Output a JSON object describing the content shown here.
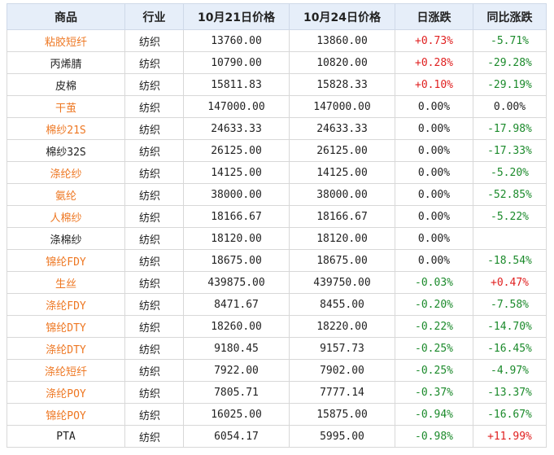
{
  "headers": [
    "商品",
    "行业",
    "10月21日价格",
    "10月24日价格",
    "日涨跌",
    "同比涨跌"
  ],
  "colors": {
    "link": "#ee7722",
    "up": "#e02020",
    "down": "#1b8a2b",
    "header_bg": "#e6eef9"
  },
  "rows": [
    {
      "name": "粘胶短纤",
      "link": true,
      "industry": "纺织",
      "p1": "13760.00",
      "p2": "13860.00",
      "day": "+0.73%",
      "day_dir": "up",
      "yoy": "-5.71%",
      "yoy_dir": "down"
    },
    {
      "name": "丙烯腈",
      "link": false,
      "industry": "纺织",
      "p1": "10790.00",
      "p2": "10820.00",
      "day": "+0.28%",
      "day_dir": "up",
      "yoy": "-29.28%",
      "yoy_dir": "down"
    },
    {
      "name": "皮棉",
      "link": false,
      "industry": "纺织",
      "p1": "15811.83",
      "p2": "15828.33",
      "day": "+0.10%",
      "day_dir": "up",
      "yoy": "-29.19%",
      "yoy_dir": "down"
    },
    {
      "name": "干茧",
      "link": true,
      "industry": "纺织",
      "p1": "147000.00",
      "p2": "147000.00",
      "day": "0.00%",
      "day_dir": "flat",
      "yoy": "0.00%",
      "yoy_dir": "flat"
    },
    {
      "name": "棉纱21S",
      "link": true,
      "industry": "纺织",
      "p1": "24633.33",
      "p2": "24633.33",
      "day": "0.00%",
      "day_dir": "flat",
      "yoy": "-17.98%",
      "yoy_dir": "down"
    },
    {
      "name": "棉纱32S",
      "link": false,
      "industry": "纺织",
      "p1": "26125.00",
      "p2": "26125.00",
      "day": "0.00%",
      "day_dir": "flat",
      "yoy": "-17.33%",
      "yoy_dir": "down"
    },
    {
      "name": "涤纶纱",
      "link": true,
      "industry": "纺织",
      "p1": "14125.00",
      "p2": "14125.00",
      "day": "0.00%",
      "day_dir": "flat",
      "yoy": "-5.20%",
      "yoy_dir": "down"
    },
    {
      "name": "氨纶",
      "link": true,
      "industry": "纺织",
      "p1": "38000.00",
      "p2": "38000.00",
      "day": "0.00%",
      "day_dir": "flat",
      "yoy": "-52.85%",
      "yoy_dir": "down"
    },
    {
      "name": "人棉纱",
      "link": true,
      "industry": "纺织",
      "p1": "18166.67",
      "p2": "18166.67",
      "day": "0.00%",
      "day_dir": "flat",
      "yoy": "-5.22%",
      "yoy_dir": "down"
    },
    {
      "name": "涤棉纱",
      "link": false,
      "industry": "纺织",
      "p1": "18120.00",
      "p2": "18120.00",
      "day": "0.00%",
      "day_dir": "flat",
      "yoy": "",
      "yoy_dir": "flat"
    },
    {
      "name": "锦纶FDY",
      "link": true,
      "industry": "纺织",
      "p1": "18675.00",
      "p2": "18675.00",
      "day": "0.00%",
      "day_dir": "flat",
      "yoy": "-18.54%",
      "yoy_dir": "down"
    },
    {
      "name": "生丝",
      "link": true,
      "industry": "纺织",
      "p1": "439875.00",
      "p2": "439750.00",
      "day": "-0.03%",
      "day_dir": "down",
      "yoy": "+0.47%",
      "yoy_dir": "up"
    },
    {
      "name": "涤纶FDY",
      "link": true,
      "industry": "纺织",
      "p1": "8471.67",
      "p2": "8455.00",
      "day": "-0.20%",
      "day_dir": "down",
      "yoy": "-7.58%",
      "yoy_dir": "down"
    },
    {
      "name": "锦纶DTY",
      "link": true,
      "industry": "纺织",
      "p1": "18260.00",
      "p2": "18220.00",
      "day": "-0.22%",
      "day_dir": "down",
      "yoy": "-14.70%",
      "yoy_dir": "down"
    },
    {
      "name": "涤纶DTY",
      "link": true,
      "industry": "纺织",
      "p1": "9180.45",
      "p2": "9157.73",
      "day": "-0.25%",
      "day_dir": "down",
      "yoy": "-16.45%",
      "yoy_dir": "down"
    },
    {
      "name": "涤纶短纤",
      "link": true,
      "industry": "纺织",
      "p1": "7922.00",
      "p2": "7902.00",
      "day": "-0.25%",
      "day_dir": "down",
      "yoy": "-4.97%",
      "yoy_dir": "down"
    },
    {
      "name": "涤纶POY",
      "link": true,
      "industry": "纺织",
      "p1": "7805.71",
      "p2": "7777.14",
      "day": "-0.37%",
      "day_dir": "down",
      "yoy": "-13.37%",
      "yoy_dir": "down"
    },
    {
      "name": "锦纶POY",
      "link": true,
      "industry": "纺织",
      "p1": "16025.00",
      "p2": "15875.00",
      "day": "-0.94%",
      "day_dir": "down",
      "yoy": "-16.67%",
      "yoy_dir": "down"
    },
    {
      "name": "PTA",
      "link": false,
      "industry": "纺织",
      "p1": "6054.17",
      "p2": "5995.00",
      "day": "-0.98%",
      "day_dir": "down",
      "yoy": "+11.99%",
      "yoy_dir": "up"
    }
  ]
}
